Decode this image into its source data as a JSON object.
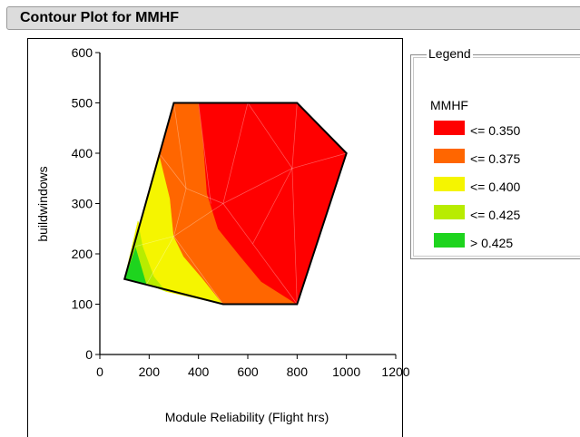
{
  "window": {
    "title": "Contour Plot for MMHF"
  },
  "legend": {
    "caption": "Legend",
    "variable": "MMHF",
    "items": [
      {
        "label": "<= 0.350",
        "color": "#ff0000"
      },
      {
        "label": "<= 0.375",
        "color": "#ff6600"
      },
      {
        "label": "<= 0.400",
        "color": "#f5f500"
      },
      {
        "label": "<= 0.425",
        "color": "#b8ec00"
      },
      {
        "label": "> 0.425",
        "color": "#1ed41e"
      }
    ]
  },
  "chart_data": {
    "type": "contour",
    "title": "",
    "xlabel": "Module Reliability (Flight hrs)",
    "ylabel": "buildwindows",
    "xlim": [
      0,
      1200
    ],
    "ylim": [
      0,
      600
    ],
    "xticks": [
      0,
      200,
      400,
      600,
      800,
      1000,
      1200
    ],
    "yticks": [
      0,
      100,
      200,
      300,
      400,
      500,
      600
    ],
    "hull": [
      [
        100,
        150
      ],
      [
        300,
        500
      ],
      [
        800,
        500
      ],
      [
        1000,
        400
      ],
      [
        800,
        100
      ],
      [
        500,
        100
      ]
    ],
    "regions": [
      {
        "level": "> 0.425",
        "color": "#1ed41e",
        "polygon": [
          [
            100,
            150
          ],
          [
            145,
            215
          ],
          [
            190,
            140
          ]
        ]
      },
      {
        "level": "<= 0.425",
        "color": "#b8ec00",
        "polygon": [
          [
            100,
            150
          ],
          [
            155,
            265
          ],
          [
            175,
            215
          ],
          [
            220,
            155
          ],
          [
            270,
            125
          ],
          [
            190,
            140
          ],
          [
            145,
            215
          ]
        ]
      },
      {
        "level": "<= 0.400",
        "color": "#f5f500",
        "polygon": [
          [
            100,
            150
          ],
          [
            240,
            400
          ],
          [
            285,
            310
          ],
          [
            300,
            235
          ],
          [
            340,
            195
          ],
          [
            410,
            155
          ],
          [
            500,
            100
          ],
          [
            270,
            125
          ],
          [
            220,
            155
          ],
          [
            175,
            215
          ],
          [
            155,
            265
          ]
        ]
      },
      {
        "level": "<= 0.375",
        "color": "#ff6600",
        "polygon": [
          [
            100,
            150
          ],
          [
            300,
            500
          ],
          [
            400,
            500
          ],
          [
            420,
            420
          ],
          [
            435,
            320
          ],
          [
            480,
            250
          ],
          [
            570,
            195
          ],
          [
            655,
            145
          ],
          [
            800,
            100
          ],
          [
            500,
            100
          ],
          [
            410,
            155
          ],
          [
            340,
            195
          ],
          [
            300,
            235
          ],
          [
            285,
            310
          ],
          [
            240,
            400
          ]
        ]
      },
      {
        "level": "<= 0.350",
        "color": "#ff0000",
        "polygon": [
          [
            400,
            500
          ],
          [
            800,
            500
          ],
          [
            1000,
            400
          ],
          [
            800,
            100
          ],
          [
            655,
            145
          ],
          [
            570,
            195
          ],
          [
            480,
            250
          ],
          [
            435,
            320
          ],
          [
            420,
            420
          ]
        ]
      }
    ]
  }
}
